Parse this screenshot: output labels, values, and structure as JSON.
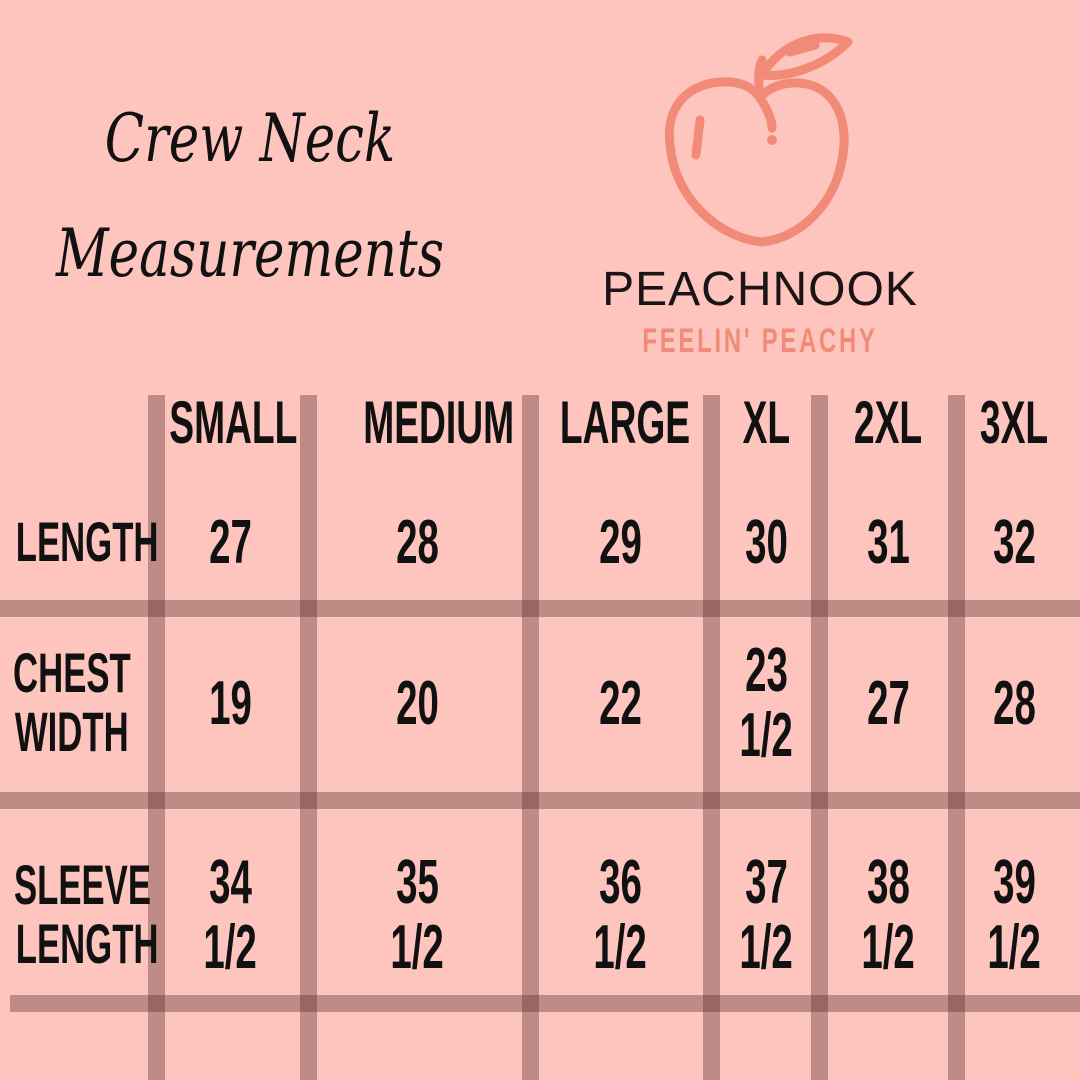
{
  "title": {
    "line1": "Crew Neck",
    "line2": "Measurements"
  },
  "logo": {
    "icon": "peach-icon",
    "brand": "PEACHNOOK",
    "tagline": "FEELIN' PEACHY",
    "color": "#f28a78"
  },
  "table": {
    "columns": [
      "SMALL",
      "MEDIUM",
      "LARGE",
      "XL",
      "2XL",
      "3XL"
    ],
    "rows": [
      {
        "label": [
          "LENGTH"
        ],
        "values": [
          [
            "27"
          ],
          [
            "28"
          ],
          [
            "29"
          ],
          [
            "30"
          ],
          [
            "31"
          ],
          [
            "32"
          ]
        ]
      },
      {
        "label": [
          "CHEST",
          "WIDTH"
        ],
        "values": [
          [
            "19"
          ],
          [
            "20"
          ],
          [
            "22"
          ],
          [
            "23",
            "1/2"
          ],
          [
            "27"
          ],
          [
            "28"
          ]
        ]
      },
      {
        "label": [
          "SLEEVE",
          "LENGTH"
        ],
        "values": [
          [
            "34",
            "1/2"
          ],
          [
            "35",
            "1/2"
          ],
          [
            "36",
            "1/2"
          ],
          [
            "37",
            "1/2"
          ],
          [
            "38",
            "1/2"
          ],
          [
            "39",
            "1/2"
          ]
        ]
      }
    ]
  },
  "colors": {
    "background": "#fdc5be",
    "grid": "#b08a85",
    "text": "#111111"
  }
}
